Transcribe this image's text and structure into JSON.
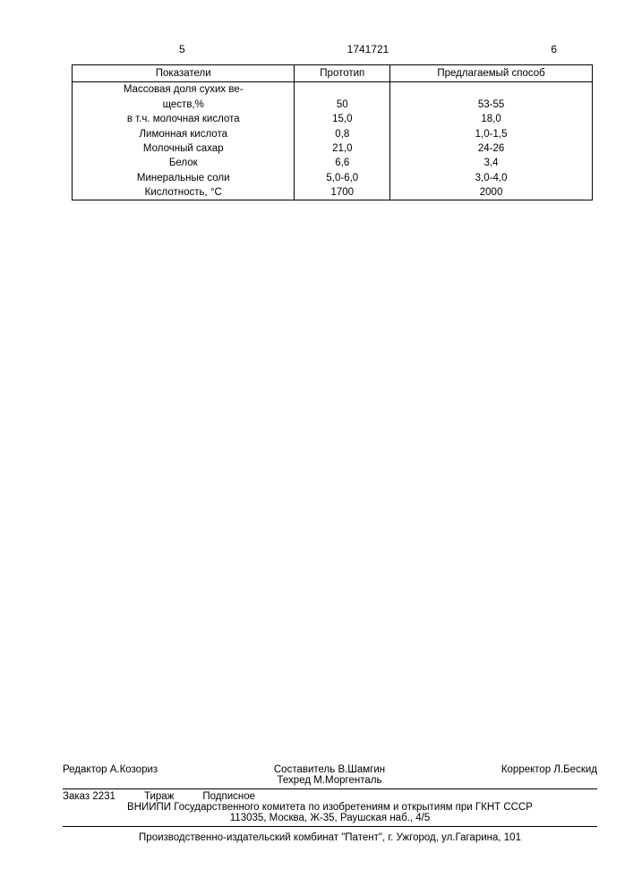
{
  "header": {
    "left_page": "5",
    "doc_number": "1741721",
    "right_page": "6"
  },
  "table": {
    "columns": [
      "Показатели",
      "Прототип",
      "Предлагаемый способ"
    ],
    "rows": [
      {
        "label": "Массовая доля сухих ве-",
        "proto": "",
        "proposed": ""
      },
      {
        "label": "ществ,%",
        "proto": "50",
        "proposed": "53-55"
      },
      {
        "label": "в т.ч. молочная кислота",
        "proto": "15,0",
        "proposed": "18,0"
      },
      {
        "label": "Лимонная кислота",
        "proto": "0,8",
        "proposed": "1,0-1,5"
      },
      {
        "label": "Молочный сахар",
        "proto": "21,0",
        "proposed": "24-26"
      },
      {
        "label": "Белок",
        "proto": "6,6",
        "proposed": "3,4"
      },
      {
        "label": "Минеральные соли",
        "proto": "5,0-6,0",
        "proposed": "3,0-4,0"
      },
      {
        "label": "Кислотность, °С",
        "proto": "1700",
        "proposed": "2000"
      }
    ]
  },
  "footer": {
    "compiler": "Составитель В.Шамгин",
    "editor": "Редактор А.Козориз",
    "techred": "Техред М.Моргенталь",
    "corrector": "Корректор Л.Бескид",
    "order": "Заказ 2231",
    "print_run": "Тираж",
    "subscr": "Подписное",
    "org": "ВНИИПИ Государственного комитета по изобретениям и открытиям при ГКНТ СССР",
    "addr": "113035, Москва, Ж-35, Раушская наб., 4/5",
    "printer": "Производственно-издательский комбинат \"Патент\", г. Ужгород, ул.Гагарина, 101"
  }
}
